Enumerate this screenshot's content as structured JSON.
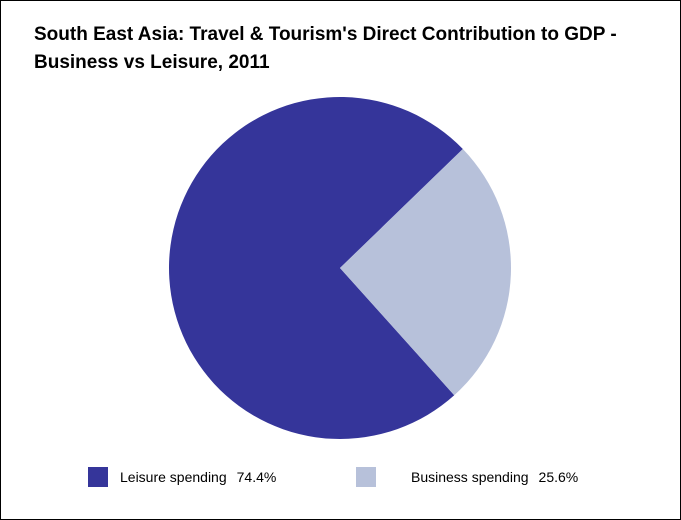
{
  "chart_data": {
    "type": "pie",
    "title": "South East Asia: Travel & Tourism's Direct Contribution to GDP - Business vs Leisure, 2011",
    "slices": [
      {
        "label": "Leisure spending",
        "value": 74.4,
        "value_label": "74.4%",
        "color": "#35359a"
      },
      {
        "label": "Business spending",
        "value": 25.6,
        "value_label": "25.6%",
        "color": "#b7c1da"
      }
    ],
    "legend_position": "bottom"
  }
}
